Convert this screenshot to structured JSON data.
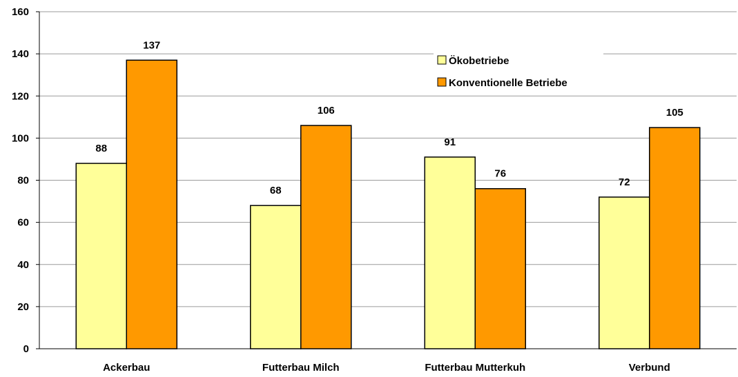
{
  "chart_data": {
    "type": "bar",
    "categories": [
      "Ackerbau",
      "Futterbau Milch",
      "Futterbau Mutterkuh",
      "Verbund"
    ],
    "series": [
      {
        "name": "Ökobetriebe",
        "values": [
          88,
          68,
          91,
          72
        ],
        "color": "#FFFF99"
      },
      {
        "name": "Konventionelle Betriebe",
        "values": [
          137,
          106,
          76,
          105
        ],
        "color": "#FF9900"
      }
    ],
    "ylim": [
      0,
      160
    ],
    "yticks": [
      0,
      20,
      40,
      60,
      80,
      100,
      120,
      140,
      160
    ],
    "grid": true,
    "legend_position": "top-right",
    "title": "",
    "xlabel": "",
    "ylabel": ""
  }
}
